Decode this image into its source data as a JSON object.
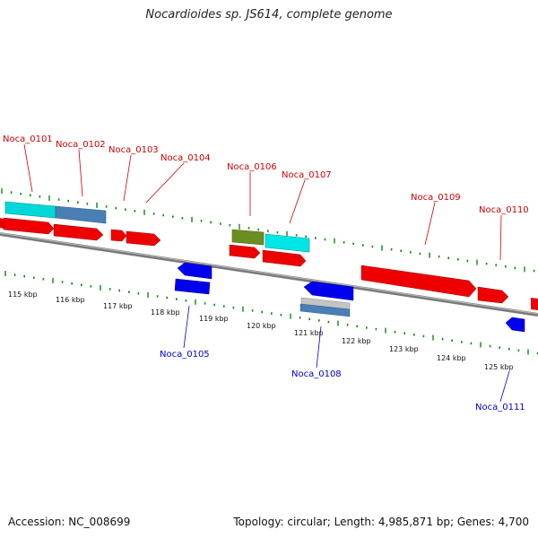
{
  "title": "Nocardioides sp. JS614, complete genome",
  "accession": "Accession: NC_008699",
  "stats": "Topology: circular; Length: 4,985,871 bp; Genes: 4,700",
  "colors": {
    "forward_gene": "#ff0000",
    "reverse_gene": "#0000ee",
    "cyan_feature": "#00e5e5",
    "steel_feature": "#4a7fb5",
    "olive_feature": "#6b8e23",
    "gray_feature": "#b8b8b8",
    "tick": "#0a8a0a",
    "backbone": "#888888"
  },
  "scale_labels": [
    "115 kbp",
    "116 kbp",
    "117 kbp",
    "118 kbp",
    "119 kbp",
    "120 kbp",
    "121 kbp",
    "122 kbp",
    "123 kbp",
    "124 kbp",
    "125 kbp"
  ],
  "gene_labels_forward": [
    "Noca_0101",
    "Noca_0102",
    "Noca_0103",
    "Noca_0104",
    "Noca_0106",
    "Noca_0107",
    "Noca_0109",
    "Noca_0110"
  ],
  "gene_labels_reverse": [
    "Noca_0105",
    "Noca_0108",
    "Noca_0111"
  ]
}
